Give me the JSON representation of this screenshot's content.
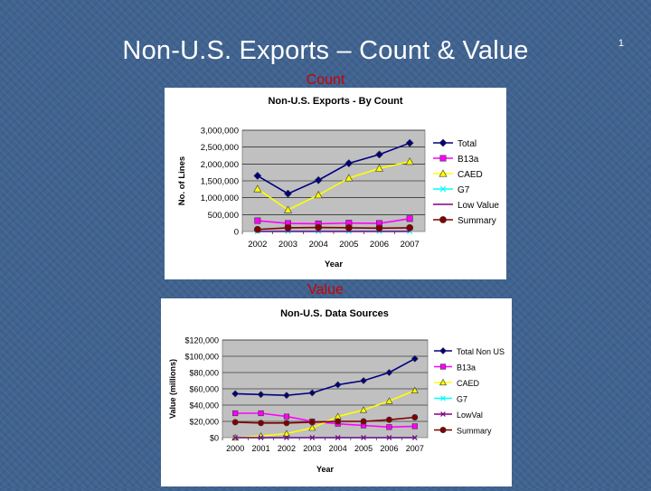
{
  "slide": {
    "title": "Non-U.S. Exports – Count & Value",
    "number": "1",
    "label_count": "Count",
    "label_value": "Value"
  },
  "colors": {
    "background": "#3f628f",
    "label": "#cc0000",
    "plot_bg": "#c0c0c0",
    "total": "#000080",
    "b13a": "#ff00ff",
    "caed": "#ffff00",
    "g7": "#00ffff",
    "lowval": "#800080",
    "summary": "#800000"
  },
  "chart_data": [
    {
      "type": "line",
      "title": "Non-U.S. Exports - By Count",
      "xlabel": "Year",
      "ylabel": "No. of Lines",
      "categories": [
        "2002",
        "2003",
        "2004",
        "2005",
        "2006",
        "2007"
      ],
      "yticks": [
        "0",
        "500,000",
        "1,000,000",
        "1,500,000",
        "2,000,000",
        "2,500,000",
        "3,000,000"
      ],
      "ylim": [
        0,
        3000000
      ],
      "grid": "horizontal",
      "legend": "right",
      "series": [
        {
          "name": "Total",
          "marker": "diamond",
          "color": "#000080",
          "values": [
            1650000,
            1120000,
            1520000,
            2020000,
            2280000,
            2620000
          ]
        },
        {
          "name": "B13a",
          "marker": "square",
          "color": "#ff00ff",
          "values": [
            320000,
            240000,
            230000,
            250000,
            240000,
            380000
          ]
        },
        {
          "name": "CAED",
          "marker": "triangle",
          "color": "#ffff00",
          "values": [
            1260000,
            640000,
            1080000,
            1580000,
            1870000,
            2070000
          ]
        },
        {
          "name": "G7",
          "marker": "x",
          "color": "#00ffff",
          "values": [
            10000,
            10000,
            10000,
            10000,
            10000,
            10000
          ]
        },
        {
          "name": "Low Value",
          "marker": "none",
          "color": "#800080",
          "values": [
            0,
            0,
            0,
            0,
            0,
            0
          ]
        },
        {
          "name": "Summary",
          "marker": "circle",
          "color": "#800000",
          "values": [
            60000,
            110000,
            120000,
            110000,
            100000,
            110000
          ]
        }
      ]
    },
    {
      "type": "line",
      "title": "Non-U.S. Data Sources",
      "xlabel": "Year",
      "ylabel": "Value (millions)",
      "categories": [
        "2000",
        "2001",
        "2002",
        "2003",
        "2004",
        "2005",
        "2006",
        "2007"
      ],
      "yticks": [
        "$0",
        "$20,000",
        "$40,000",
        "$60,000",
        "$80,000",
        "$100,000",
        "$120,000"
      ],
      "ylim": [
        0,
        120000
      ],
      "grid": "horizontal",
      "legend": "right",
      "series": [
        {
          "name": "Total Non US",
          "marker": "diamond",
          "color": "#000080",
          "values": [
            54000,
            53000,
            52000,
            55000,
            65000,
            70000,
            80000,
            97000
          ]
        },
        {
          "name": "B13a",
          "marker": "square",
          "color": "#ff00ff",
          "values": [
            30000,
            30000,
            26000,
            20000,
            17000,
            15000,
            13000,
            14000
          ]
        },
        {
          "name": "CAED",
          "marker": "triangle",
          "color": "#ffff00",
          "values": [
            0,
            2000,
            5000,
            12000,
            26000,
            34000,
            45000,
            58000
          ]
        },
        {
          "name": "G7",
          "marker": "x",
          "color": "#00ffff",
          "values": [
            0,
            0,
            0,
            0,
            0,
            0,
            0,
            0
          ]
        },
        {
          "name": "LowVal",
          "marker": "x",
          "color": "#800080",
          "values": [
            0,
            0,
            0,
            0,
            0,
            0,
            0,
            0
          ]
        },
        {
          "name": "Summary",
          "marker": "circle",
          "color": "#800000",
          "values": [
            19000,
            18000,
            18000,
            19000,
            20000,
            20000,
            22000,
            25000
          ]
        }
      ]
    }
  ]
}
